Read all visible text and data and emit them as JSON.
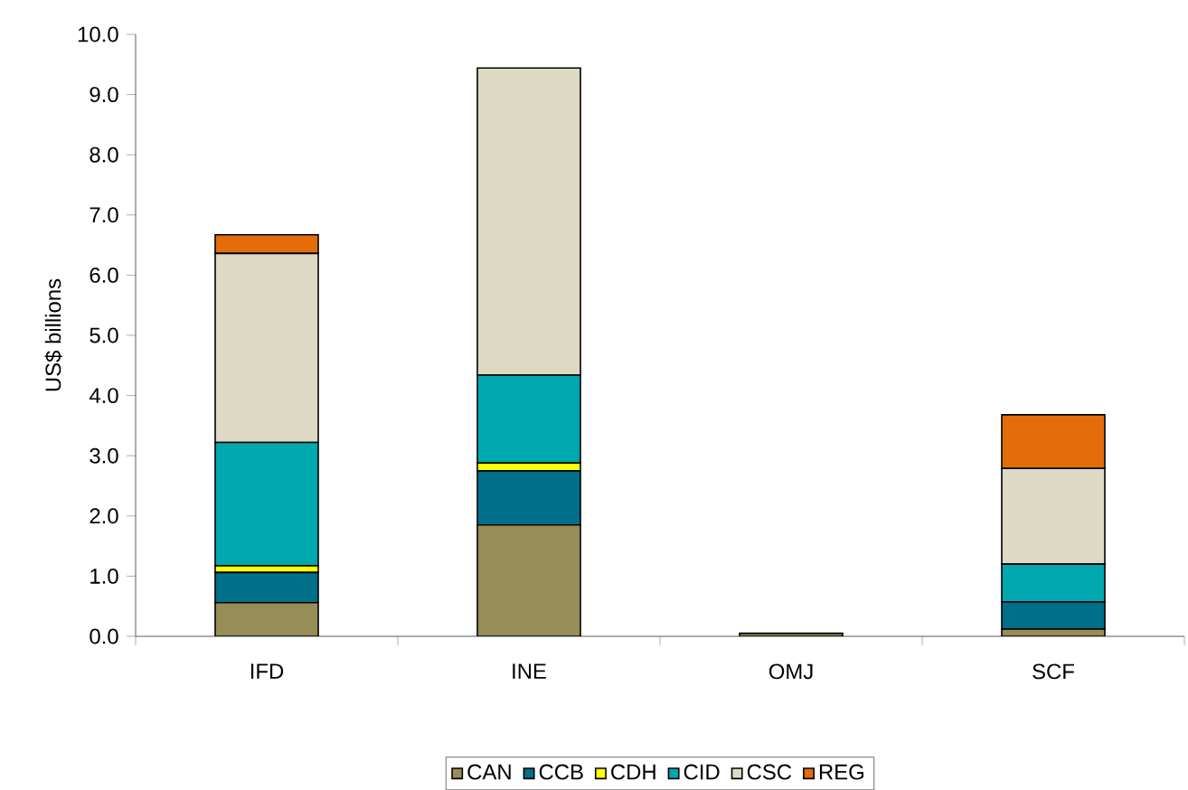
{
  "chart_data": {
    "type": "bar",
    "stacked": true,
    "ylabel": "US$ billions",
    "categories": [
      "IFD",
      "INE",
      "OMJ",
      "SCF"
    ],
    "series": [
      {
        "name": "CAN",
        "color": "#978d56",
        "values": [
          0.56,
          1.85,
          0.05,
          0.12
        ]
      },
      {
        "name": "CCB",
        "color": "#006f8a",
        "values": [
          0.5,
          0.9,
          0,
          0.45
        ]
      },
      {
        "name": "CDH",
        "color": "#ffff00",
        "values": [
          0.11,
          0.13,
          0,
          0
        ]
      },
      {
        "name": "CID",
        "color": "#00a8b0",
        "values": [
          2.05,
          1.46,
          0,
          0.63
        ]
      },
      {
        "name": "CSC",
        "color": "#ddd9c3",
        "values": [
          3.14,
          5.1,
          0,
          1.59
        ]
      },
      {
        "name": "REG",
        "color": "#e46c0a",
        "values": [
          0.31,
          0,
          0,
          0.89
        ]
      }
    ],
    "ylim": [
      0,
      10
    ],
    "yticks": [
      {
        "value": 0,
        "label": "0.0"
      },
      {
        "value": 1,
        "label": "1.0"
      },
      {
        "value": 2,
        "label": "2.0"
      },
      {
        "value": 3,
        "label": "3.0"
      },
      {
        "value": 4,
        "label": "4.0"
      },
      {
        "value": 5,
        "label": "5.0"
      },
      {
        "value": 6,
        "label": "6.0"
      },
      {
        "value": 7,
        "label": "7.0"
      },
      {
        "value": 8,
        "label": "8.0"
      },
      {
        "value": 9,
        "label": "9.0"
      },
      {
        "value": 10,
        "label": "10.0"
      }
    ],
    "grid": false,
    "legend": "bottom"
  }
}
